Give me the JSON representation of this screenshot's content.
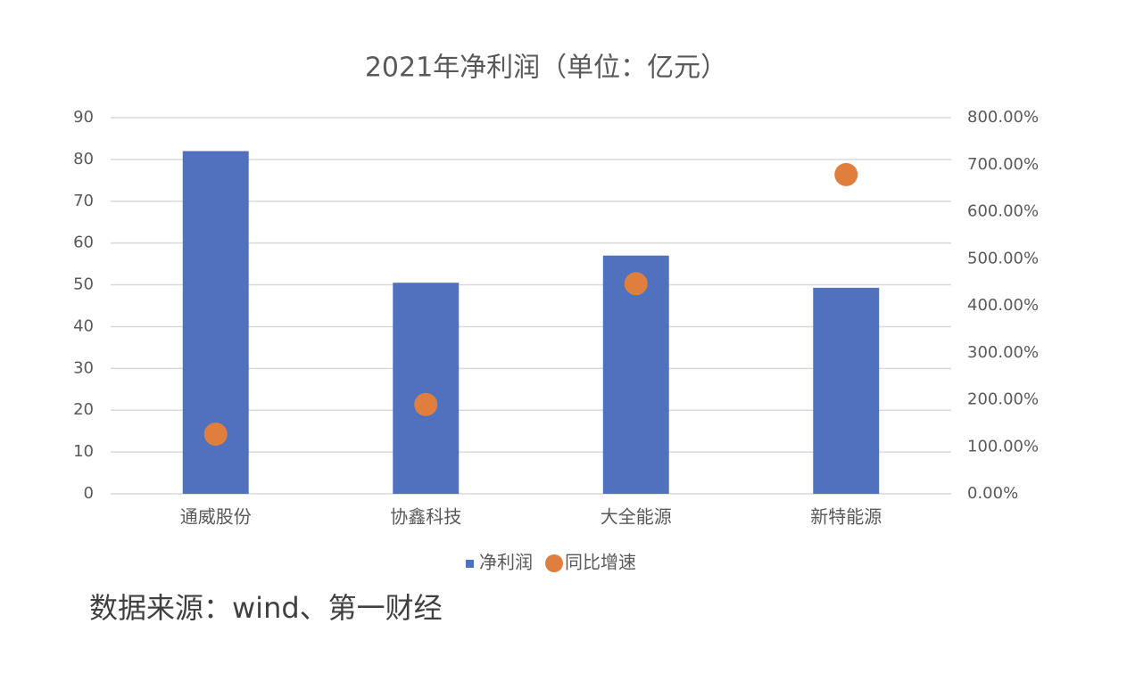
{
  "chart_data": {
    "type": "bar",
    "title": "2021年净利润（单位：亿元）",
    "categories": [
      "通威股份",
      "协鑫科技",
      "大全能源",
      "新特能源"
    ],
    "series": [
      {
        "name": "净利润",
        "type": "bar",
        "color": "#4f71be",
        "values": [
          82,
          50.5,
          57,
          49.3
        ]
      },
      {
        "name": "同比增速",
        "type": "scatter",
        "axis": "y2",
        "color": "#e07f3d",
        "values": [
          127,
          190,
          447,
          679
        ]
      }
    ],
    "ylim": [
      0,
      90
    ],
    "yticks": [
      0,
      10,
      20,
      30,
      40,
      50,
      60,
      70,
      80,
      90
    ],
    "y2lim": [
      0,
      800
    ],
    "y2ticks": [
      {
        "value": 0,
        "label": "0.00%"
      },
      {
        "value": 100,
        "label": "100.00%"
      },
      {
        "value": 200,
        "label": "200.00%"
      },
      {
        "value": 300,
        "label": "300.00%"
      },
      {
        "value": 400,
        "label": "400.00%"
      },
      {
        "value": 500,
        "label": "500.00%"
      },
      {
        "value": 600,
        "label": "600.00%"
      },
      {
        "value": 700,
        "label": "700.00%"
      },
      {
        "value": 800,
        "label": "800.00%"
      }
    ],
    "grid": true,
    "legend": "bottom",
    "source": "数据来源：wind、第一财经"
  }
}
